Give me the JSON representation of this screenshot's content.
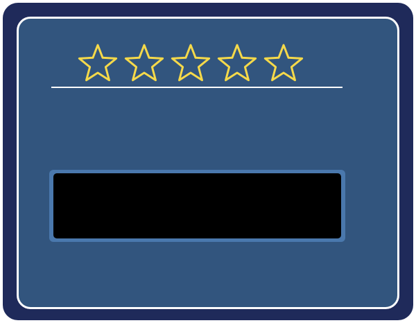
{
  "rating": {
    "value": 0,
    "max": 5,
    "star_outline_color": "#f5d94a",
    "icon": "star-outline-icon"
  },
  "colors": {
    "outer_frame": "#1f2a5a",
    "panel": "#32557e",
    "panel_border": "#ffffff",
    "display_bezel": "#4a78ad",
    "display_screen": "#000000"
  },
  "display": {
    "text": ""
  }
}
